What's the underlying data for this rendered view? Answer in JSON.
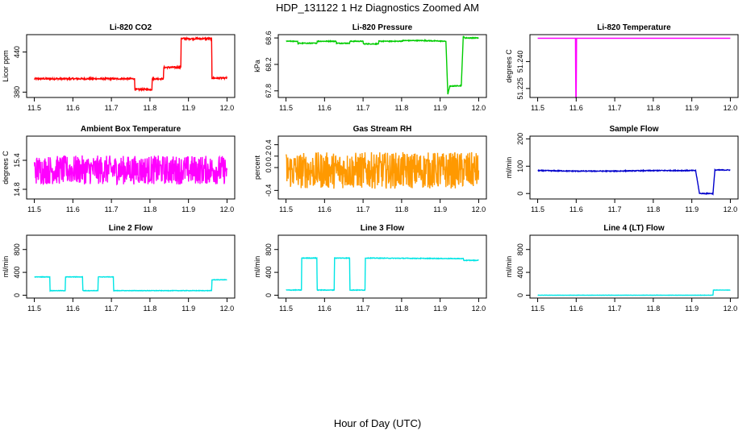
{
  "title": "HDP_131122  1 Hz Diagnostics Zoomed AM",
  "xlabel": "Hour of Day (UTC)",
  "chart_data": [
    {
      "type": "line",
      "title": "Li-820 CO2",
      "ylabel": "Licor ppm",
      "color": "#ff0000",
      "xlim": [
        11.48,
        12.02
      ],
      "ylim": [
        372,
        466
      ],
      "xticks": [
        "11.5",
        "11.6",
        "11.7",
        "11.8",
        "11.9",
        "12.0"
      ],
      "yticks": [
        "380",
        "440"
      ],
      "x": [
        11.5,
        11.76,
        11.761,
        11.805,
        11.806,
        11.835,
        11.836,
        11.88,
        11.881,
        11.96,
        11.961,
        12.0
      ],
      "y": [
        400,
        400,
        384,
        384,
        400,
        400,
        417,
        417,
        460,
        460,
        401,
        401
      ],
      "noise": 1.2
    },
    {
      "type": "line",
      "title": "Li-820 Pressure",
      "ylabel": "kPa",
      "color": "#00cc00",
      "xlim": [
        11.48,
        12.02
      ],
      "ylim": [
        67.7,
        68.65
      ],
      "xticks": [
        "11.5",
        "11.6",
        "11.7",
        "11.8",
        "11.9",
        "12.0"
      ],
      "yticks": [
        "67.8",
        "68.2",
        "68.6"
      ],
      "x": [
        11.5,
        11.53,
        11.531,
        11.58,
        11.581,
        11.63,
        11.631,
        11.665,
        11.666,
        11.7,
        11.701,
        11.74,
        11.741,
        11.8,
        11.801,
        11.86,
        11.861,
        11.915,
        11.92,
        11.925,
        11.955,
        11.96,
        11.965,
        12.0
      ],
      "y": [
        68.55,
        68.55,
        68.52,
        68.52,
        68.55,
        68.55,
        68.52,
        68.52,
        68.55,
        68.55,
        68.51,
        68.51,
        68.55,
        68.55,
        68.56,
        68.56,
        68.56,
        68.55,
        67.75,
        67.87,
        67.88,
        68.62,
        68.6,
        68.6
      ],
      "noise": 0.006
    },
    {
      "type": "line",
      "title": "Li-820 Temperature",
      "ylabel": "degrees C",
      "color": "#ff00ff",
      "xlim": [
        11.48,
        12.02
      ],
      "ylim": [
        51.22,
        51.255
      ],
      "xticks": [
        "11.5",
        "11.6",
        "11.7",
        "11.8",
        "11.9",
        "12.0"
      ],
      "yticks": [
        "51.225",
        "51.240"
      ],
      "x": [
        11.5,
        11.598,
        11.599,
        11.6,
        11.601,
        12.0
      ],
      "y": [
        51.253,
        51.253,
        51.22,
        51.22,
        51.253,
        51.253
      ],
      "noise": 0
    },
    {
      "type": "line",
      "title": "Ambient Box Temperature",
      "ylabel": "degrees C",
      "color": "#ff00ff",
      "xlim": [
        11.48,
        12.02
      ],
      "ylim": [
        14.6,
        15.9
      ],
      "xticks": [
        "11.5",
        "11.6",
        "11.7",
        "11.8",
        "11.9",
        "12.0"
      ],
      "yticks": [
        "14.8",
        "15.4"
      ],
      "x": [
        11.5,
        12.0
      ],
      "y": [
        15.2,
        15.2
      ],
      "noise": 0.3
    },
    {
      "type": "line",
      "title": "Gas Stream RH",
      "ylabel": "percent",
      "color": "#ff9900",
      "xlim": [
        11.48,
        12.02
      ],
      "ylim": [
        -0.55,
        0.55
      ],
      "xticks": [
        "11.5",
        "11.6",
        "11.7",
        "11.8",
        "11.9",
        "12.0"
      ],
      "yticks": [
        "-0.4",
        "0.0",
        "0.2",
        "0.4"
      ],
      "x": [
        11.5,
        12.0
      ],
      "y": [
        -0.05,
        -0.05
      ],
      "noise": 0.32
    },
    {
      "type": "line",
      "title": "Sample Flow",
      "ylabel": "ml/min",
      "color": "#0000cc",
      "xlim": [
        11.48,
        12.02
      ],
      "ylim": [
        -20,
        210
      ],
      "xticks": [
        "11.5",
        "11.6",
        "11.7",
        "11.8",
        "11.9",
        "12.0"
      ],
      "yticks": [
        "0",
        "100",
        "200"
      ],
      "x": [
        11.5,
        11.6,
        11.7,
        11.8,
        11.91,
        11.92,
        11.955,
        11.96,
        12.0
      ],
      "y": [
        84,
        82,
        82,
        84,
        84,
        0,
        0,
        86,
        86
      ],
      "noise": 1.5
    },
    {
      "type": "line",
      "title": "Line 2 Flow",
      "ylabel": "ml/min",
      "color": "#00e5e5",
      "xlim": [
        11.48,
        12.02
      ],
      "ylim": [
        -50,
        1050
      ],
      "xticks": [
        "11.5",
        "11.6",
        "11.7",
        "11.8",
        "11.9",
        "12.0"
      ],
      "yticks": [
        "0",
        "400",
        "800"
      ],
      "x": [
        11.5,
        11.54,
        11.541,
        11.58,
        11.581,
        11.625,
        11.626,
        11.665,
        11.666,
        11.705,
        11.706,
        11.96,
        11.961,
        12.0
      ],
      "y": [
        320,
        320,
        80,
        80,
        320,
        320,
        80,
        80,
        320,
        320,
        80,
        80,
        270,
        270
      ],
      "noise": 4
    },
    {
      "type": "line",
      "title": "Line 3 Flow",
      "ylabel": "ml/min",
      "color": "#00e5e5",
      "xlim": [
        11.48,
        12.02
      ],
      "ylim": [
        -50,
        1050
      ],
      "xticks": [
        "11.5",
        "11.6",
        "11.7",
        "11.8",
        "11.9",
        "12.0"
      ],
      "yticks": [
        "0",
        "400",
        "800"
      ],
      "x": [
        11.5,
        11.54,
        11.541,
        11.58,
        11.581,
        11.625,
        11.626,
        11.665,
        11.666,
        11.705,
        11.706,
        11.96,
        11.961,
        12.0
      ],
      "y": [
        90,
        90,
        650,
        650,
        90,
        90,
        650,
        650,
        90,
        90,
        650,
        640,
        610,
        610
      ],
      "noise": 5
    },
    {
      "type": "line",
      "title": "Line 4 (LT) Flow",
      "ylabel": "ml/min",
      "color": "#00e5e5",
      "xlim": [
        11.48,
        12.02
      ],
      "ylim": [
        -50,
        1050
      ],
      "xticks": [
        "11.5",
        "11.6",
        "11.7",
        "11.8",
        "11.9",
        "12.0"
      ],
      "yticks": [
        "0",
        "400",
        "800"
      ],
      "x": [
        11.5,
        11.955,
        11.956,
        12.0
      ],
      "y": [
        0,
        0,
        90,
        90
      ],
      "noise": 2
    }
  ]
}
